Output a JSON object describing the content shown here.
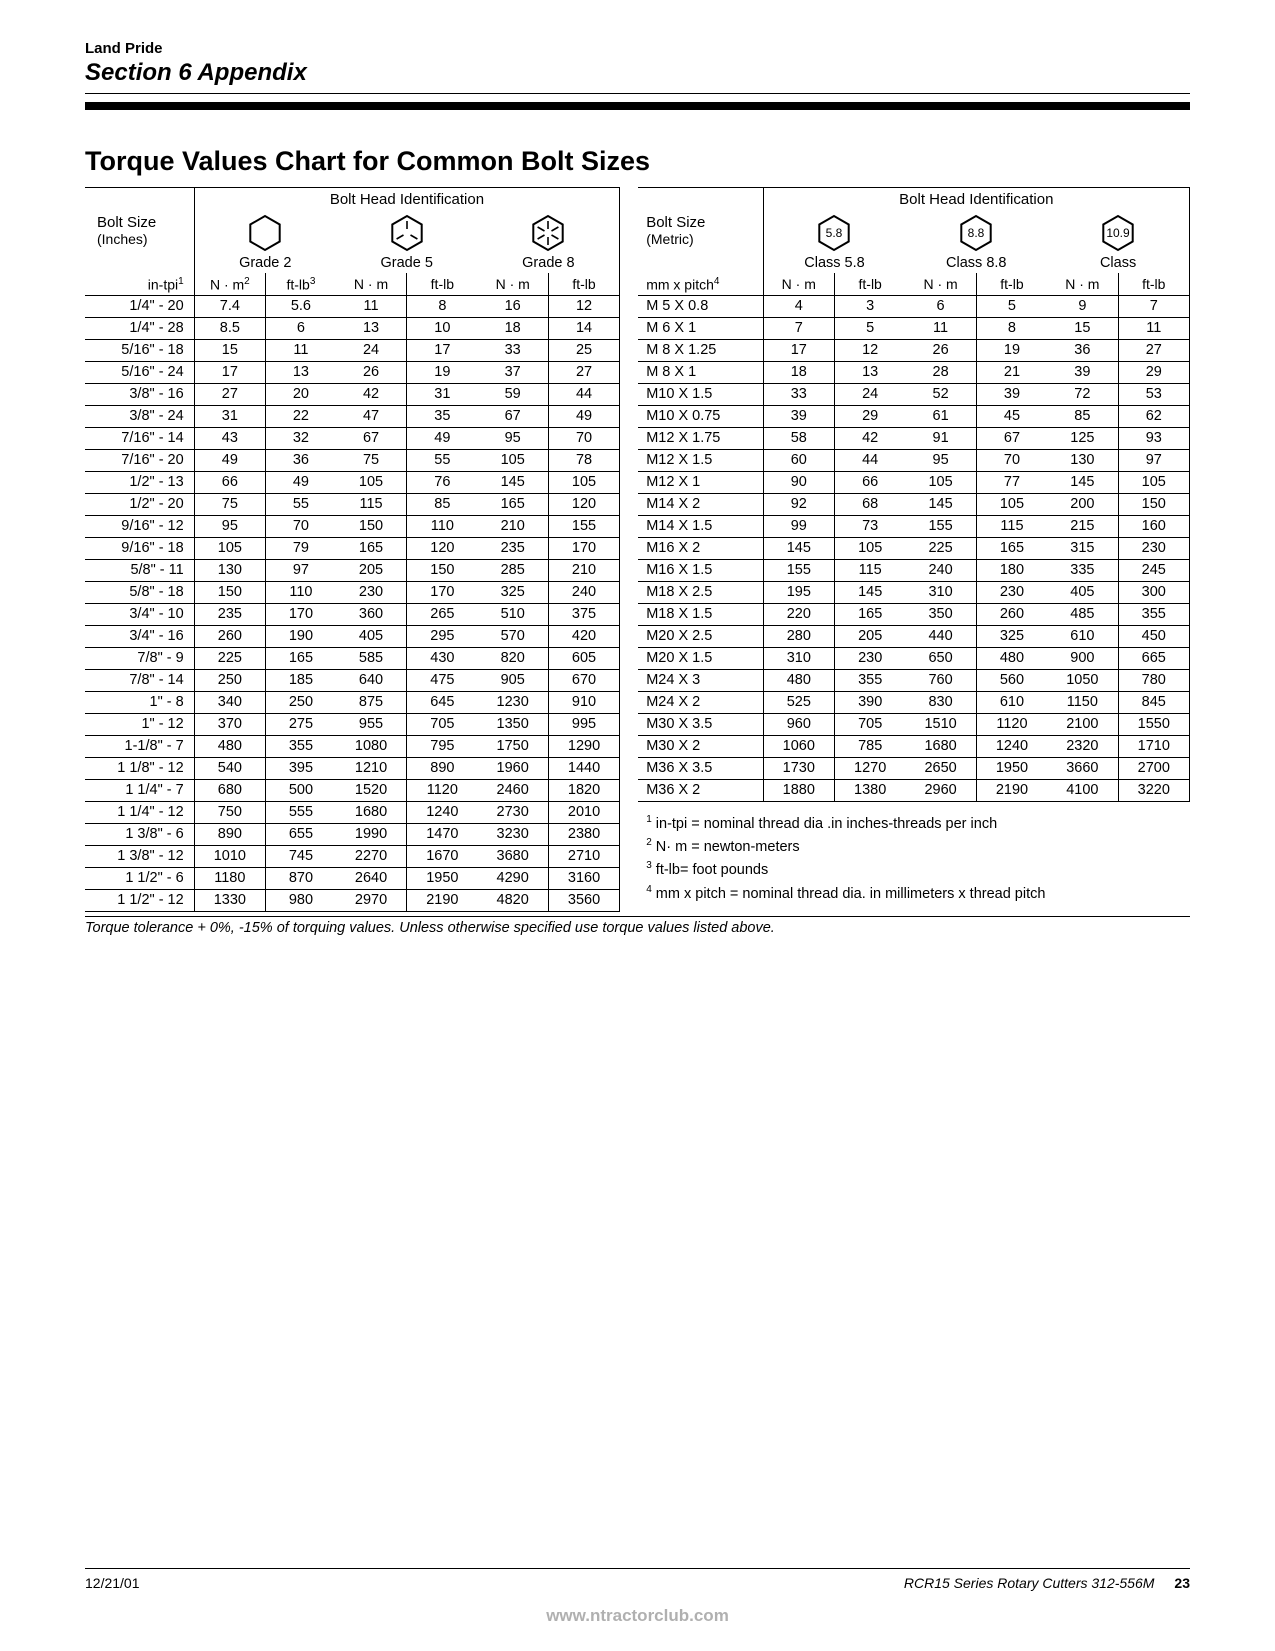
{
  "brand": "Land Pride",
  "section": "Section 6 Appendix",
  "chart_title": "Torque Values Chart for Common Bolt Sizes",
  "imperial": {
    "bhi_label": "Bolt Head Identification",
    "size_label_1": "Bolt Size",
    "size_label_2": "(Inches)",
    "size_label_3": "in-tpi",
    "size_fn": "1",
    "grades": [
      {
        "label": "Grade 2",
        "marks": 0
      },
      {
        "label": "Grade 5",
        "marks": 3
      },
      {
        "label": "Grade 8",
        "marks": 6
      }
    ],
    "unit_1": "N · m",
    "unit_1_fn": "2",
    "unit_2": "ft-lb",
    "unit_2_fn": "3",
    "rows": [
      {
        "size": "1/4\" - 20",
        "v": [
          "7.4",
          "5.6",
          "11",
          "8",
          "16",
          "12"
        ]
      },
      {
        "size": "1/4\" - 28",
        "v": [
          "8.5",
          "6",
          "13",
          "10",
          "18",
          "14"
        ]
      },
      {
        "size": "5/16\" - 18",
        "v": [
          "15",
          "11",
          "24",
          "17",
          "33",
          "25"
        ]
      },
      {
        "size": "5/16\" - 24",
        "v": [
          "17",
          "13",
          "26",
          "19",
          "37",
          "27"
        ]
      },
      {
        "size": "3/8\" - 16",
        "v": [
          "27",
          "20",
          "42",
          "31",
          "59",
          "44"
        ]
      },
      {
        "size": "3/8\" - 24",
        "v": [
          "31",
          "22",
          "47",
          "35",
          "67",
          "49"
        ]
      },
      {
        "size": "7/16\" - 14",
        "v": [
          "43",
          "32",
          "67",
          "49",
          "95",
          "70"
        ]
      },
      {
        "size": "7/16\" - 20",
        "v": [
          "49",
          "36",
          "75",
          "55",
          "105",
          "78"
        ]
      },
      {
        "size": "1/2\" - 13",
        "v": [
          "66",
          "49",
          "105",
          "76",
          "145",
          "105"
        ]
      },
      {
        "size": "1/2\" - 20",
        "v": [
          "75",
          "55",
          "115",
          "85",
          "165",
          "120"
        ]
      },
      {
        "size": "9/16\" - 12",
        "v": [
          "95",
          "70",
          "150",
          "110",
          "210",
          "155"
        ]
      },
      {
        "size": "9/16\" - 18",
        "v": [
          "105",
          "79",
          "165",
          "120",
          "235",
          "170"
        ]
      },
      {
        "size": "5/8\" - 11",
        "v": [
          "130",
          "97",
          "205",
          "150",
          "285",
          "210"
        ]
      },
      {
        "size": "5/8\" - 18",
        "v": [
          "150",
          "110",
          "230",
          "170",
          "325",
          "240"
        ]
      },
      {
        "size": "3/4\" - 10",
        "v": [
          "235",
          "170",
          "360",
          "265",
          "510",
          "375"
        ]
      },
      {
        "size": "3/4\" - 16",
        "v": [
          "260",
          "190",
          "405",
          "295",
          "570",
          "420"
        ]
      },
      {
        "size": "7/8\" - 9",
        "v": [
          "225",
          "165",
          "585",
          "430",
          "820",
          "605"
        ]
      },
      {
        "size": "7/8\" - 14",
        "v": [
          "250",
          "185",
          "640",
          "475",
          "905",
          "670"
        ]
      },
      {
        "size": "1\" - 8",
        "v": [
          "340",
          "250",
          "875",
          "645",
          "1230",
          "910"
        ]
      },
      {
        "size": "1\" - 12",
        "v": [
          "370",
          "275",
          "955",
          "705",
          "1350",
          "995"
        ]
      },
      {
        "size": "1-1/8\" - 7",
        "v": [
          "480",
          "355",
          "1080",
          "795",
          "1750",
          "1290"
        ]
      },
      {
        "size": "1 1/8\" - 12",
        "v": [
          "540",
          "395",
          "1210",
          "890",
          "1960",
          "1440"
        ]
      },
      {
        "size": "1 1/4\" - 7",
        "v": [
          "680",
          "500",
          "1520",
          "1120",
          "2460",
          "1820"
        ]
      },
      {
        "size": "1 1/4\" - 12",
        "v": [
          "750",
          "555",
          "1680",
          "1240",
          "2730",
          "2010"
        ]
      },
      {
        "size": "1 3/8\" - 6",
        "v": [
          "890",
          "655",
          "1990",
          "1470",
          "3230",
          "2380"
        ]
      },
      {
        "size": "1 3/8\" - 12",
        "v": [
          "1010",
          "745",
          "2270",
          "1670",
          "3680",
          "2710"
        ]
      },
      {
        "size": "1 1/2\" - 6",
        "v": [
          "1180",
          "870",
          "2640",
          "1950",
          "4290",
          "3160"
        ]
      },
      {
        "size": "1 1/2\" - 12",
        "v": [
          "1330",
          "980",
          "2970",
          "2190",
          "4820",
          "3560"
        ]
      }
    ]
  },
  "metric": {
    "bhi_label": "Bolt Head Identification",
    "size_label_1": "Bolt Size",
    "size_label_2": "(Metric)",
    "size_label_3": "mm x pitch",
    "size_fn": "4",
    "classes": [
      {
        "num": "5.8",
        "label": "Class 5.8"
      },
      {
        "num": "8.8",
        "label": "Class 8.8"
      },
      {
        "num": "10.9",
        "label": "Class"
      }
    ],
    "unit_1": "N · m",
    "unit_2": "ft-lb",
    "rows": [
      {
        "size": "M 5 X 0.8",
        "v": [
          "4",
          "3",
          "6",
          "5",
          "9",
          "7"
        ]
      },
      {
        "size": "M 6 X 1",
        "v": [
          "7",
          "5",
          "11",
          "8",
          "15",
          "11"
        ]
      },
      {
        "size": "M 8 X 1.25",
        "v": [
          "17",
          "12",
          "26",
          "19",
          "36",
          "27"
        ]
      },
      {
        "size": "M 8 X 1",
        "v": [
          "18",
          "13",
          "28",
          "21",
          "39",
          "29"
        ]
      },
      {
        "size": "M10 X 1.5",
        "v": [
          "33",
          "24",
          "52",
          "39",
          "72",
          "53"
        ]
      },
      {
        "size": "M10 X 0.75",
        "v": [
          "39",
          "29",
          "61",
          "45",
          "85",
          "62"
        ]
      },
      {
        "size": "M12 X 1.75",
        "v": [
          "58",
          "42",
          "91",
          "67",
          "125",
          "93"
        ]
      },
      {
        "size": "M12 X 1.5",
        "v": [
          "60",
          "44",
          "95",
          "70",
          "130",
          "97"
        ]
      },
      {
        "size": "M12 X 1",
        "v": [
          "90",
          "66",
          "105",
          "77",
          "145",
          "105"
        ]
      },
      {
        "size": "M14 X 2",
        "v": [
          "92",
          "68",
          "145",
          "105",
          "200",
          "150"
        ]
      },
      {
        "size": "M14 X 1.5",
        "v": [
          "99",
          "73",
          "155",
          "115",
          "215",
          "160"
        ]
      },
      {
        "size": "M16 X 2",
        "v": [
          "145",
          "105",
          "225",
          "165",
          "315",
          "230"
        ]
      },
      {
        "size": "M16 X 1.5",
        "v": [
          "155",
          "115",
          "240",
          "180",
          "335",
          "245"
        ]
      },
      {
        "size": "M18 X 2.5",
        "v": [
          "195",
          "145",
          "310",
          "230",
          "405",
          "300"
        ]
      },
      {
        "size": "M18 X 1.5",
        "v": [
          "220",
          "165",
          "350",
          "260",
          "485",
          "355"
        ]
      },
      {
        "size": "M20 X 2.5",
        "v": [
          "280",
          "205",
          "440",
          "325",
          "610",
          "450"
        ]
      },
      {
        "size": "M20 X 1.5",
        "v": [
          "310",
          "230",
          "650",
          "480",
          "900",
          "665"
        ]
      },
      {
        "size": "M24 X 3",
        "v": [
          "480",
          "355",
          "760",
          "560",
          "1050",
          "780"
        ]
      },
      {
        "size": "M24 X 2",
        "v": [
          "525",
          "390",
          "830",
          "610",
          "1150",
          "845"
        ]
      },
      {
        "size": "M30 X 3.5",
        "v": [
          "960",
          "705",
          "1510",
          "1120",
          "2100",
          "1550"
        ]
      },
      {
        "size": "M30 X 2",
        "v": [
          "1060",
          "785",
          "1680",
          "1240",
          "2320",
          "1710"
        ]
      },
      {
        "size": "M36 X 3.5",
        "v": [
          "1730",
          "1270",
          "2650",
          "1950",
          "3660",
          "2700"
        ]
      },
      {
        "size": "M36 X 2",
        "v": [
          "1880",
          "1380",
          "2960",
          "2190",
          "4100",
          "3220"
        ]
      }
    ]
  },
  "footnotes": [
    {
      "n": "1",
      "t": "in-tpi = nominal thread dia .in inches-threads per inch"
    },
    {
      "n": "2",
      "t": "N· m = newton-meters"
    },
    {
      "n": "3",
      "t": "ft-lb= foot pounds"
    },
    {
      "n": "4",
      "t": "mm x pitch = nominal thread dia. in millimeters x thread pitch"
    }
  ],
  "tolerance_note": "Torque tolerance + 0%, -15% of torquing values. Unless otherwise specified use torque values listed above.",
  "footer": {
    "date": "12/21/01",
    "doc": "RCR15 Series Rotary Cutters   312-556M",
    "page": "23"
  },
  "url": "www.ntractorclub.com"
}
